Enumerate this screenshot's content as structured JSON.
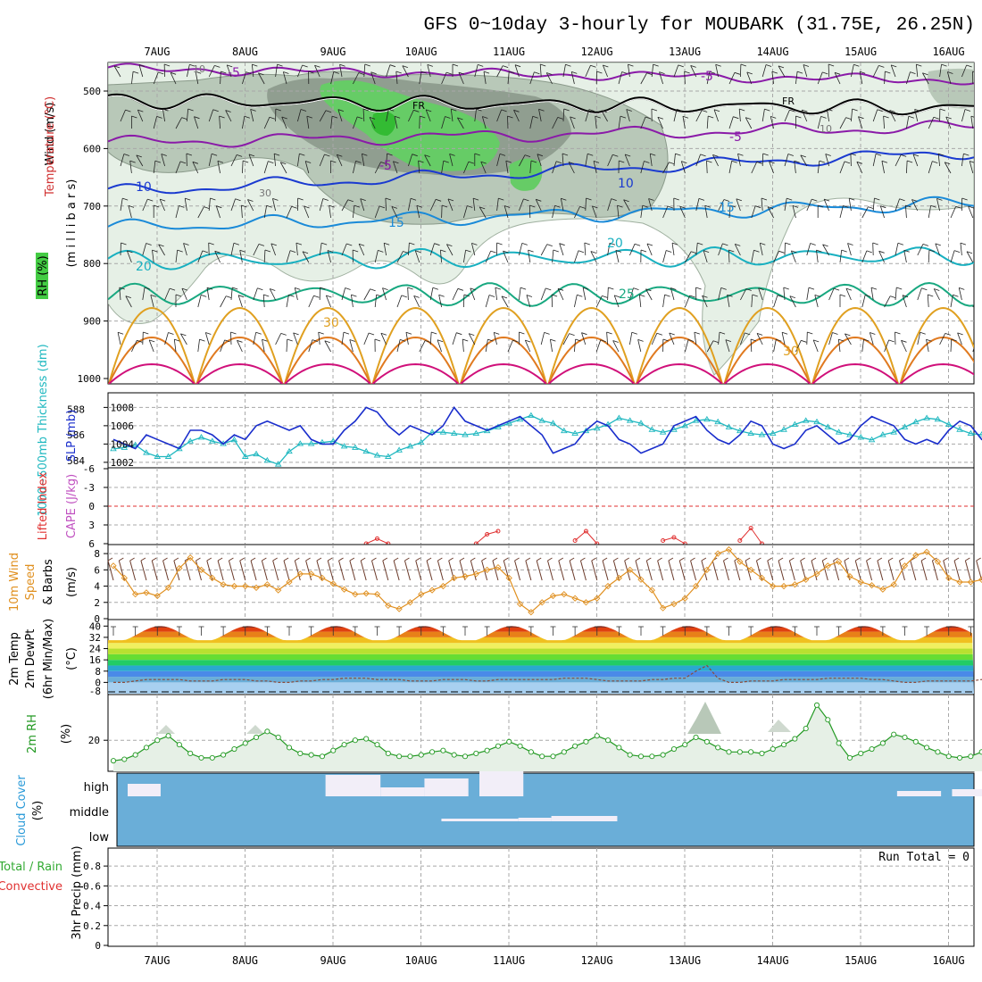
{
  "title": "GFS 0~10day 3-hourly for MOUBARK (31.75E, 26.25N)",
  "colors": {
    "grid": "#a8a8a8",
    "rh_light": "#e6f0e6",
    "rh_mid": "#b8c8b8",
    "rh_dark": "#909e90",
    "rh_green": "#66cc66",
    "rh_bright": "#33bb33",
    "cloud_blue": "#6aaed8",
    "wind_line": "#e09020",
    "slp_line": "#1a2ecc",
    "thick_line": "#20b8c0",
    "rh2m_line": "#229922",
    "li_line": "#e03030"
  },
  "panels": {
    "upper": {
      "ylabel_wind": "Wind (m/s)",
      "ylabel_temp": "Temperature (°C)",
      "ylabel_rh": "RH (%)",
      "ylabel_p": "(m i l l i b a r s)",
      "ylevels": [
        "500",
        "600",
        "700",
        "800",
        "900",
        "1000"
      ],
      "labels": {
        "fr1": "FR",
        "fr2": "FR",
        "t_m5a": "-5",
        "t_m5b": "-5",
        "t_m5c": "-5",
        "t_m5d": "-5",
        "t_10a": "10",
        "t_10b": "10",
        "t_15a": "15",
        "t_15b": "15",
        "t_20a": "20",
        "t_20b": "20",
        "t_25": "25",
        "t_30a": "30",
        "t_30b": "30",
        "rh_10a": "10",
        "rh_30": "30",
        "rh_10b": "10"
      }
    },
    "slp": {
      "label_thick": "1000~500mb Thickness (dm)",
      "label_slp": "SLP (mb)",
      "left_ticks": [
        "588",
        "586",
        "584"
      ],
      "right_ticks": [
        "1008",
        "1006",
        "1004",
        "1002"
      ]
    },
    "cape": {
      "label_li": "Lifted Index",
      "label_cape": "CAPE (J/kg)",
      "ticks": [
        "-6",
        "-3",
        "0",
        "3",
        "6"
      ]
    },
    "wind10": {
      "label_a": "10m Wind",
      "label_b": "Speed",
      "label_c": "& Barbs",
      "label_unit": "(m/s)",
      "ticks": [
        "8",
        "6",
        "4",
        "2",
        "0"
      ]
    },
    "temp2m": {
      "label_a": "2m Temp",
      "label_b": "2m DewPt",
      "label_c": "(6hr Min/Max)",
      "label_unit": "(°C)",
      "ticks": [
        "40",
        "32",
        "24",
        "16",
        "8",
        "0"
      ],
      "extra_tick": "-8"
    },
    "rh2m": {
      "label": "2m RH",
      "unit": "(%)",
      "ticks": [
        "20"
      ]
    },
    "cloud": {
      "label_a": "Cloud Cover",
      "label_b": "(%)",
      "high": "high",
      "middle": "middle",
      "low": "low"
    },
    "precip": {
      "label_a": "Total / Rain",
      "label_b": "Convective",
      "label_c": "3hr Precip (mm)",
      "run_total": "Run Total = 0",
      "ticks": [
        "0.8",
        "0.6",
        "0.4",
        "0.2",
        "0"
      ]
    }
  },
  "chart_data": {
    "type": "line",
    "x_dates": [
      "7AUG",
      "8AUG",
      "9AUG",
      "10AUG",
      "11AUG",
      "12AUG",
      "13AUG",
      "14AUG",
      "15AUG",
      "16AUG"
    ],
    "time_step_hours": 3,
    "slp_mb": [
      1004.5,
      1004,
      1003.5,
      1005,
      1004.5,
      1004,
      1003.5,
      1005.5,
      1005.5,
      1005,
      1004,
      1005,
      1004.5,
      1006,
      1006.5,
      1006,
      1005.5,
      1006,
      1004.5,
      1004,
      1004,
      1005.5,
      1006.5,
      1008,
      1007.5,
      1006,
      1005,
      1006,
      1005.5,
      1005,
      1006,
      1008,
      1006.5,
      1006,
      1005.5,
      1006,
      1006.5,
      1007,
      1006,
      1005,
      1003,
      1003.5,
      1004,
      1005.5,
      1006.5,
      1006,
      1004.5,
      1004,
      1003,
      1003.5,
      1004,
      1006,
      1006.5,
      1007,
      1005.5,
      1004.5,
      1004,
      1005,
      1006.5,
      1006,
      1004,
      1003.5,
      1004,
      1005.5,
      1006,
      1005,
      1004,
      1004.5,
      1006,
      1007,
      1006.5,
      1006,
      1004.5,
      1004,
      1004.5,
      1004,
      1005.5,
      1006.5,
      1006,
      1004.5,
      1004,
      1003.5,
      1002.5,
      1003,
      1004,
      1004.5,
      1004.5,
      1003.5,
      1002.5,
      1003.5,
      1004,
      1004.5,
      1006
    ],
    "thickness_dm": [
      584.9,
      585,
      585.2,
      584.6,
      584.3,
      584.3,
      584.9,
      585.5,
      585.8,
      585.5,
      585.3,
      585.6,
      584.3,
      584.5,
      584,
      583.7,
      584.7,
      585.3,
      585.3,
      585.4,
      585.5,
      585.1,
      585,
      584.7,
      584.4,
      584.3,
      584.8,
      585.1,
      585.4,
      586.2,
      586.2,
      586.1,
      586,
      586.1,
      586.3,
      586.6,
      586.9,
      587.2,
      587.5,
      587.1,
      586.9,
      586.3,
      586.1,
      586.3,
      586.5,
      586.8,
      587.3,
      587.1,
      586.9,
      586.4,
      586.2,
      586.4,
      586.7,
      587.1,
      587.2,
      587.0,
      586.6,
      586.3,
      586.1,
      586.0,
      586.1,
      586.4,
      586.8,
      587.1,
      587.0,
      586.6,
      586.2,
      586.0,
      585.8,
      585.6,
      586.0,
      586.2,
      586.6,
      587.0,
      587.3,
      587.2,
      586.8,
      586.4,
      586.1,
      586.0,
      586.4,
      586.9,
      587.3,
      587.5,
      587.2,
      586.6,
      586.4,
      586.2,
      586.0,
      586.2,
      586.5,
      586.9,
      586.4
    ],
    "wind10m_ms": [
      6.5,
      5,
      3,
      3.2,
      2.8,
      3.8,
      6.2,
      7.5,
      6,
      5,
      4.2,
      4,
      4,
      3.8,
      4.2,
      3.5,
      4.5,
      5.5,
      5.5,
      5,
      4.3,
      3.6,
      3,
      3.1,
      3,
      1.6,
      1.2,
      2,
      3,
      3.5,
      4,
      5,
      5.2,
      5.5,
      6,
      6.3,
      5,
      1.8,
      0.8,
      2,
      2.8,
      3,
      2.5,
      2,
      2.5,
      4,
      5,
      6,
      4.8,
      3.5,
      1.3,
      1.8,
      2.5,
      4,
      6,
      8,
      8.5,
      7,
      6,
      5,
      4,
      4,
      4.2,
      4.8,
      5.5,
      6.5,
      7,
      5.2,
      4.5,
      4.1,
      3.6,
      4.2,
      6.5,
      7.8,
      8.2,
      7,
      5,
      4.5,
      4.5,
      4.8,
      5.5,
      6.5,
      7.5,
      7.8,
      6,
      4.5,
      4.5,
      4.2,
      4,
      4.5,
      5,
      4,
      3.8
    ],
    "rh2m_pct": [
      6,
      7,
      10,
      15,
      20,
      23,
      17,
      11,
      8,
      8,
      10,
      14,
      18,
      22,
      26,
      22,
      15,
      11,
      10,
      9,
      13,
      17,
      20,
      21,
      17,
      11,
      9,
      9,
      10,
      12,
      13,
      10,
      9,
      11,
      13,
      16,
      19,
      16,
      12,
      9,
      9,
      12,
      16,
      19,
      23,
      20,
      15,
      10,
      9,
      9,
      10,
      14,
      17,
      22,
      19,
      15,
      12,
      12,
      12,
      11,
      14,
      17,
      21,
      28,
      44,
      34,
      18,
      8,
      11,
      14,
      18,
      24,
      22,
      19,
      15,
      12,
      9,
      8,
      9,
      12,
      16,
      20,
      22,
      19,
      14,
      10,
      8,
      9,
      13,
      20,
      21,
      21,
      16
    ],
    "lifted_index_series": [
      {
        "name": "",
        "x_hours_from_start": [
          69,
          72,
          75
        ],
        "values": [
          6,
          5.2,
          6
        ]
      },
      {
        "name": "",
        "x_hours_from_start": [
          99,
          102,
          105
        ],
        "values": [
          6,
          4.5,
          4
        ]
      },
      {
        "name": "",
        "x_hours_from_start": [
          126,
          129,
          132
        ],
        "values": [
          5.5,
          4,
          6
        ]
      },
      {
        "name": "",
        "x_hours_from_start": [
          150,
          153,
          156
        ],
        "values": [
          5.5,
          5,
          6
        ]
      },
      {
        "name": "",
        "x_hours_from_start": [
          171,
          174,
          177
        ],
        "values": [
          5.5,
          3.5,
          6
        ]
      }
    ],
    "temp2m_range": {
      "ylim": [
        -8,
        44
      ],
      "max_daily": [
        40,
        40,
        40,
        40,
        42,
        40,
        40,
        40,
        40,
        40
      ],
      "min_daily": [
        30,
        30,
        30,
        30,
        30,
        30,
        30,
        30,
        30,
        31
      ]
    },
    "dewpoint_c": [
      0,
      0,
      1,
      2,
      2,
      2,
      2,
      1,
      1,
      1,
      2,
      2,
      2,
      1,
      1,
      0,
      0,
      1,
      1,
      2,
      2,
      3,
      3,
      3,
      2,
      2,
      2,
      1,
      1,
      1,
      2,
      2,
      2,
      1,
      1,
      2,
      2,
      2,
      2,
      2,
      2,
      3,
      3,
      3,
      2,
      1,
      1,
      1,
      1,
      2,
      2,
      3,
      3,
      8,
      12,
      3,
      0,
      0,
      1,
      1,
      1,
      2,
      2,
      2,
      2,
      3,
      3,
      3,
      3,
      2,
      2,
      1,
      0,
      0,
      1,
      1,
      1,
      1,
      1,
      2,
      2,
      2,
      1,
      1,
      1,
      1,
      1,
      1,
      1,
      1,
      1,
      1,
      1
    ],
    "cloud_cover": {
      "high_blocks": [
        [
          0,
          3
        ],
        [
          18,
          23
        ],
        [
          23,
          27
        ],
        [
          27,
          31
        ],
        [
          32,
          36
        ],
        [
          70,
          74
        ],
        [
          75,
          78
        ]
      ],
      "middle_blocks": [
        [
          27,
          34
        ],
        [
          34,
          37
        ],
        [
          37,
          43
        ]
      ]
    },
    "precip_mm": [
      0
    ],
    "ylim_precip": [
      0,
      0.9
    ],
    "ylim_slp": [
      1001.5,
      1009.5
    ],
    "ylim_thickness": [
      583.5,
      589.2
    ],
    "ylim_wind10m": [
      0,
      9
    ],
    "ylim_rh2m": [
      0,
      50
    ],
    "ylim_li": [
      6,
      -6
    ]
  }
}
